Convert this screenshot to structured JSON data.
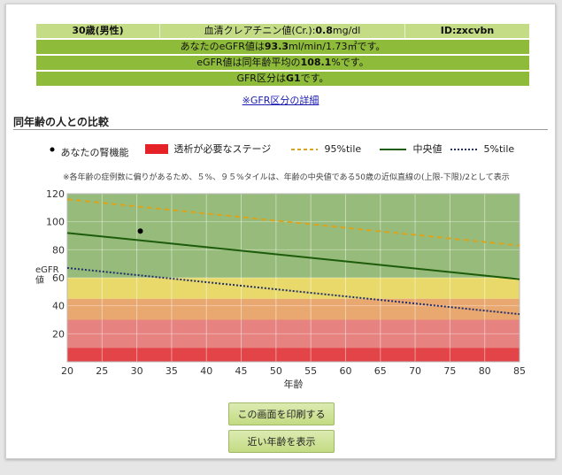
{
  "info": {
    "age_sex": "30歳(男性)",
    "creatinine_label": "血清クレアチニン値(Cr.):",
    "creatinine_value": "0.8",
    "creatinine_unit": "mg/dl",
    "id_label": "ID:",
    "id_value": "zxcvbn",
    "egfr_prefix": "あなたのeGFR値は",
    "egfr_value": "93.3",
    "egfr_suffix": "ml/min/1.73㎡です。",
    "avg_prefix": "eGFR値は同年齢平均の",
    "avg_value": "108.1",
    "avg_suffix": "%です。",
    "gfr_prefix": "GFR区分は",
    "gfr_value": "G1",
    "gfr_suffix": "です。"
  },
  "detail_link": "※GFR区分の詳細",
  "section_title": "同年齢の人との比較",
  "legend": {
    "kidney": "あなたの腎機能",
    "dialysis": "透析が必要なステージ",
    "p95": "95%tile",
    "median": "中央値",
    "p5": "5%tile"
  },
  "note": "※各年齢の症例数に偏りがあるため、５%、９５%タイルは、年齢の中央値である50歳の近似直線の(上限-下限)/2として表示",
  "colors": {
    "zone_green": "#96bb7b",
    "zone_yellow": "#e8d96a",
    "zone_orange": "#e9a870",
    "zone_pink": "#e68280",
    "zone_red": "#e24447",
    "p95_line": "#d9a520",
    "median_line": "#1d5c0a",
    "p5_line": "#23306a"
  },
  "chart_data": {
    "type": "line",
    "xlabel": "年齢",
    "ylabel": "eGFR値",
    "xlim": [
      20,
      85
    ],
    "ylim": [
      0,
      120
    ],
    "xticks": [
      20,
      25,
      30,
      35,
      40,
      45,
      50,
      55,
      60,
      65,
      70,
      75,
      80,
      85
    ],
    "yticks": [
      20,
      40,
      60,
      80,
      100,
      120
    ],
    "zones": [
      {
        "from": 60,
        "to": 120,
        "color_key": "zone_green"
      },
      {
        "from": 45,
        "to": 60,
        "color_key": "zone_yellow"
      },
      {
        "from": 30,
        "to": 45,
        "color_key": "zone_orange"
      },
      {
        "from": 10,
        "to": 30,
        "color_key": "zone_pink"
      },
      {
        "from": 0,
        "to": 10,
        "color_key": "zone_red"
      }
    ],
    "series": [
      {
        "name": "95%tile",
        "x": [
          20,
          85
        ],
        "y": [
          116,
          83
        ],
        "style": "dashed",
        "color_key": "p95_line"
      },
      {
        "name": "中央値",
        "x": [
          20,
          85
        ],
        "y": [
          92,
          59
        ],
        "style": "solid",
        "color_key": "median_line"
      },
      {
        "name": "5%tile",
        "x": [
          20,
          85
        ],
        "y": [
          67,
          34
        ],
        "style": "dotted",
        "color_key": "p5_line"
      }
    ],
    "point": {
      "name": "あなたの腎機能",
      "x": 30.5,
      "y": 93.3
    },
    "grid": true
  },
  "buttons": {
    "print": "この画面を印刷する",
    "nearby": "近い年齢を表示"
  }
}
